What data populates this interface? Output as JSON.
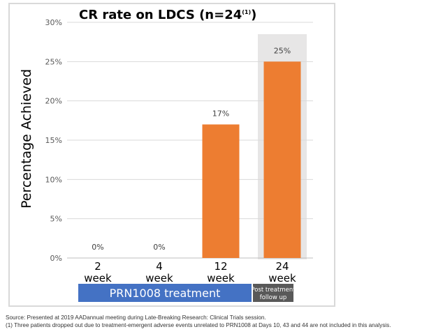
{
  "chart_data": {
    "type": "bar",
    "title": "CR rate on LDCS (n=24",
    "title_superscript": "(1)",
    "title_suffix": ")",
    "ylabel": "Percentage Achieved",
    "ylim": [
      0,
      30
    ],
    "yticks": [
      "0%",
      "5%",
      "10%",
      "15%",
      "20%",
      "25%",
      "30%"
    ],
    "ytick_values": [
      0,
      5,
      10,
      15,
      20,
      25,
      30
    ],
    "categories": [
      {
        "line1": "2",
        "line2": "week"
      },
      {
        "line1": "4",
        "line2": "week"
      },
      {
        "line1": "12",
        "line2": "week"
      },
      {
        "line1": "24",
        "line2": "week"
      }
    ],
    "values": [
      0,
      0,
      17,
      25
    ],
    "data_labels": [
      "0%",
      "0%",
      "17%",
      "25%"
    ],
    "bar_color": "#ED7D31",
    "highlight_band_color": "#E7E6E6",
    "highlighted_category_index": 3,
    "groups": [
      {
        "label": "PRN1008 treatment",
        "color": "#4472C4",
        "from": 0,
        "to": 2
      },
      {
        "label_line1": "Post treatment",
        "label_line2": "follow up",
        "color": "#595959",
        "from": 3,
        "to": 3
      }
    ]
  },
  "footnotes": {
    "source": "Source: Presented at 2019 AADannual meeting during Late-Breaking Research: Clinical Trials session.",
    "note1": "(1) Three patients dropped out due to treatment-emergent adverse events unrelated to PRN1008 at Days 10, 43 and 44 are not included in this analysis."
  }
}
